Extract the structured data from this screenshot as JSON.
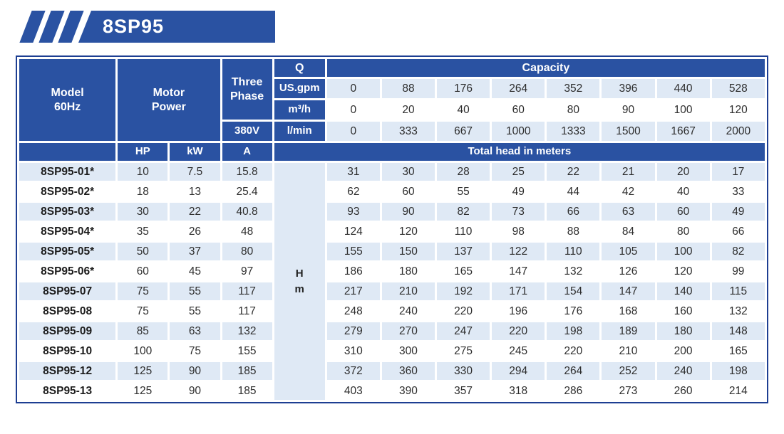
{
  "banner": {
    "title": "8SP95"
  },
  "colors": {
    "primary_blue": "#2a52a2",
    "border_navy": "#1d3e92",
    "light_row": "#dfe9f5"
  },
  "table": {
    "header": {
      "model_line1": "Model",
      "model_line2": "60Hz",
      "motor_line1": "Motor",
      "motor_line2": "Power",
      "phase_line1": "Three",
      "phase_line2": "Phase",
      "voltage": "380V",
      "q_label": "Q",
      "capacity_label": "Capacity",
      "hp_label": "HP",
      "kw_label": "kW",
      "amp_label": "A",
      "total_head_label": "Total head in meters",
      "head_line1": "H",
      "head_line2": "m"
    },
    "capacity_rows": [
      {
        "unit": "US.gpm",
        "values": [
          "0",
          "88",
          "176",
          "264",
          "352",
          "396",
          "440",
          "528"
        ]
      },
      {
        "unit": "m³/h",
        "values": [
          "0",
          "20",
          "40",
          "60",
          "80",
          "90",
          "100",
          "120"
        ]
      },
      {
        "unit": "l/min",
        "values": [
          "0",
          "333",
          "667",
          "1000",
          "1333",
          "1500",
          "1667",
          "2000"
        ]
      }
    ],
    "rows": [
      {
        "model": "8SP95-01*",
        "hp": "10",
        "kw": "7.5",
        "amp": "15.8",
        "head": [
          "31",
          "30",
          "28",
          "25",
          "22",
          "21",
          "20",
          "17"
        ]
      },
      {
        "model": "8SP95-02*",
        "hp": "18",
        "kw": "13",
        "amp": "25.4",
        "head": [
          "62",
          "60",
          "55",
          "49",
          "44",
          "42",
          "40",
          "33"
        ]
      },
      {
        "model": "8SP95-03*",
        "hp": "30",
        "kw": "22",
        "amp": "40.8",
        "head": [
          "93",
          "90",
          "82",
          "73",
          "66",
          "63",
          "60",
          "49"
        ]
      },
      {
        "model": "8SP95-04*",
        "hp": "35",
        "kw": "26",
        "amp": "48",
        "head": [
          "124",
          "120",
          "110",
          "98",
          "88",
          "84",
          "80",
          "66"
        ]
      },
      {
        "model": "8SP95-05*",
        "hp": "50",
        "kw": "37",
        "amp": "80",
        "head": [
          "155",
          "150",
          "137",
          "122",
          "110",
          "105",
          "100",
          "82"
        ]
      },
      {
        "model": "8SP95-06*",
        "hp": "60",
        "kw": "45",
        "amp": "97",
        "head": [
          "186",
          "180",
          "165",
          "147",
          "132",
          "126",
          "120",
          "99"
        ]
      },
      {
        "model": "8SP95-07",
        "hp": "75",
        "kw": "55",
        "amp": "117",
        "head": [
          "217",
          "210",
          "192",
          "171",
          "154",
          "147",
          "140",
          "115"
        ]
      },
      {
        "model": "8SP95-08",
        "hp": "75",
        "kw": "55",
        "amp": "117",
        "head": [
          "248",
          "240",
          "220",
          "196",
          "176",
          "168",
          "160",
          "132"
        ]
      },
      {
        "model": "8SP95-09",
        "hp": "85",
        "kw": "63",
        "amp": "132",
        "head": [
          "279",
          "270",
          "247",
          "220",
          "198",
          "189",
          "180",
          "148"
        ]
      },
      {
        "model": "8SP95-10",
        "hp": "100",
        "kw": "75",
        "amp": "155",
        "head": [
          "310",
          "300",
          "275",
          "245",
          "220",
          "210",
          "200",
          "165"
        ]
      },
      {
        "model": "8SP95-12",
        "hp": "125",
        "kw": "90",
        "amp": "185",
        "head": [
          "372",
          "360",
          "330",
          "294",
          "264",
          "252",
          "240",
          "198"
        ]
      },
      {
        "model": "8SP95-13",
        "hp": "125",
        "kw": "90",
        "amp": "185",
        "head": [
          "403",
          "390",
          "357",
          "318",
          "286",
          "273",
          "260",
          "214"
        ]
      }
    ]
  }
}
